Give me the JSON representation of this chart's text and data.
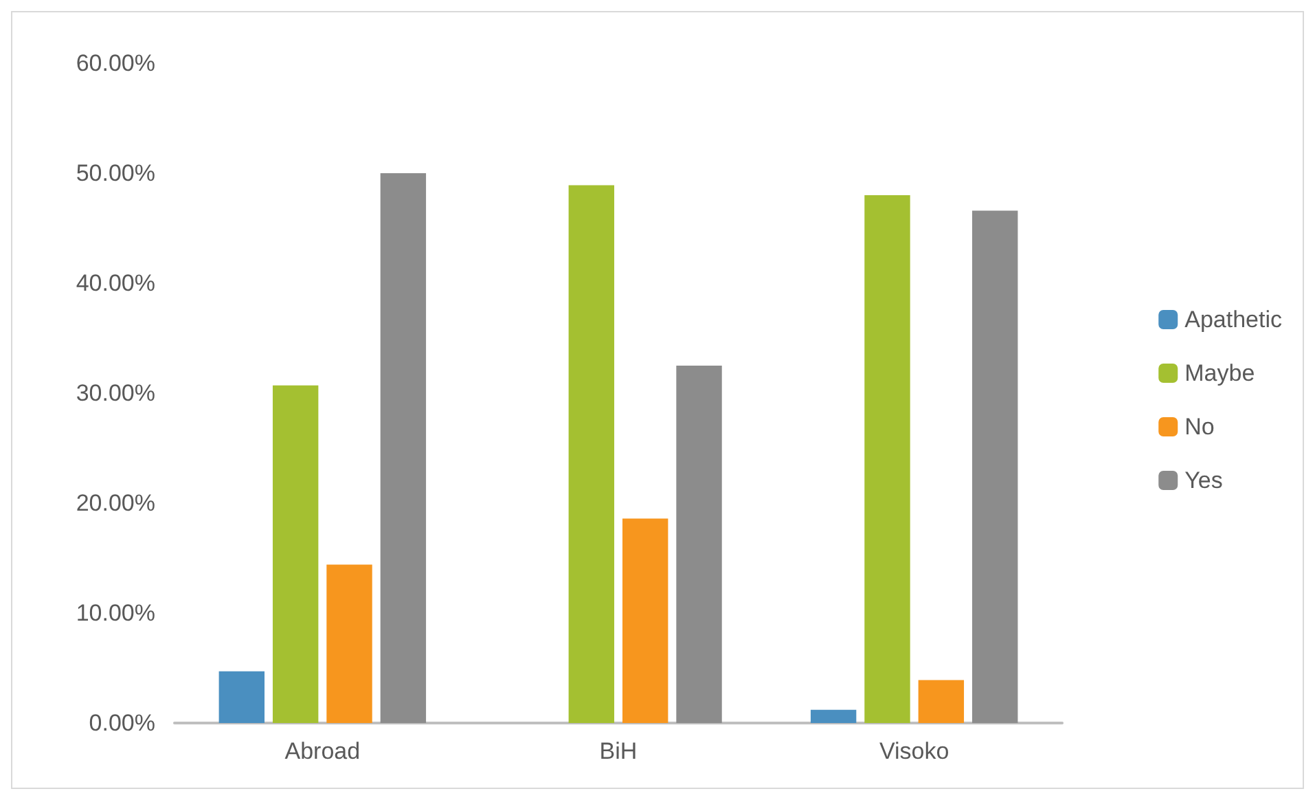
{
  "chart_data": {
    "type": "bar",
    "categories": [
      "Abroad",
      "BiH",
      "Visoko"
    ],
    "series": [
      {
        "name": "Apathetic",
        "color": "#4a8fc0",
        "values": [
          4.7,
          null,
          1.2
        ]
      },
      {
        "name": "Maybe",
        "color": "#a4c031",
        "values": [
          30.7,
          48.9,
          48.0
        ]
      },
      {
        "name": "No",
        "color": "#f7961e",
        "values": [
          14.4,
          18.6,
          3.9
        ]
      },
      {
        "name": "Yes",
        "color": "#8c8c8c",
        "values": [
          50.0,
          32.5,
          46.6
        ]
      }
    ],
    "ylim": [
      0,
      60
    ],
    "yticks": [
      {
        "value": 0,
        "label": "0.00%"
      },
      {
        "value": 10,
        "label": "10.00%"
      },
      {
        "value": 20,
        "label": "20.00%"
      },
      {
        "value": 30,
        "label": "30.00%"
      },
      {
        "value": 40,
        "label": "40.00%"
      },
      {
        "value": 50,
        "label": "50.00%"
      },
      {
        "value": 60,
        "label": "60.00%"
      }
    ],
    "grid": false,
    "legend": "right"
  }
}
